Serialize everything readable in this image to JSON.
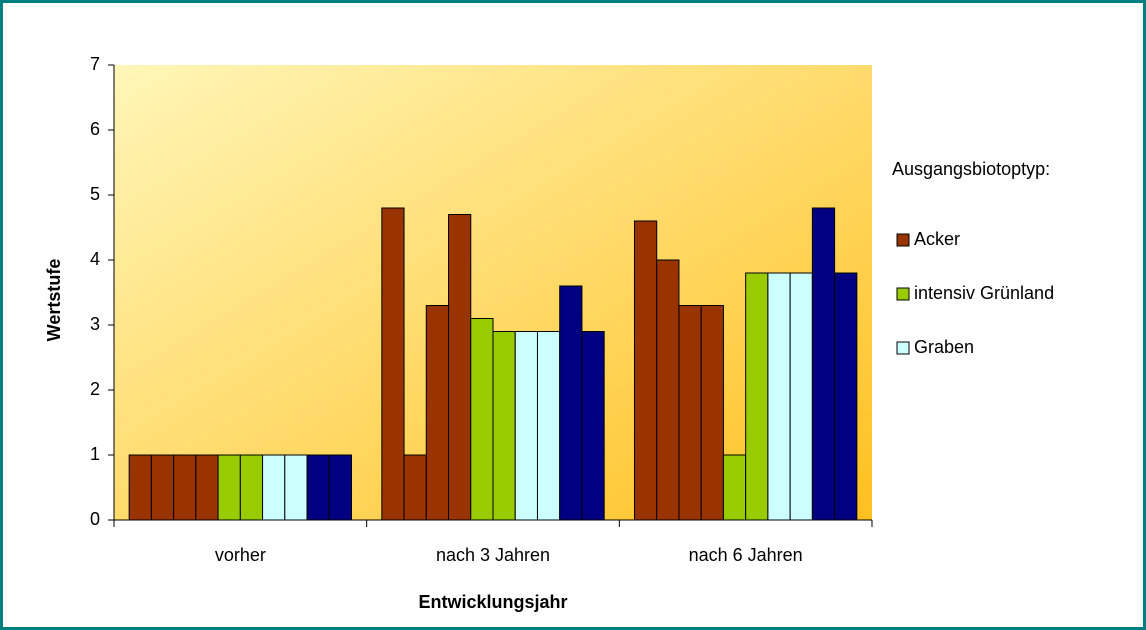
{
  "chart_data": {
    "type": "bar",
    "x_label": "Entwicklungsjahr",
    "y_label": "Wertstufe",
    "legend_title": "Ausgangsbiotoptyp:",
    "categories": [
      "vorher",
      "nach 3 Jahren",
      "nach 6 Jahren"
    ],
    "series": [
      {
        "name": "Acker",
        "color": "#993300",
        "values": [
          [
            1,
            1,
            1,
            1
          ],
          [
            4.8,
            1,
            3.3,
            4.7
          ],
          [
            4.6,
            4.0,
            3.3,
            3.3
          ]
        ]
      },
      {
        "name": "intensiv Grünland",
        "color": "#99cc00",
        "values": [
          [
            1,
            1
          ],
          [
            3.1,
            2.9
          ],
          [
            1,
            3.8
          ]
        ]
      },
      {
        "name": "Graben",
        "color": "#ccffff",
        "values": [
          [
            1,
            1
          ],
          [
            2.9,
            2.9
          ],
          [
            3.8,
            3.8
          ]
        ]
      },
      {
        "color": "#000080",
        "values": [
          [
            1,
            1
          ],
          [
            3.6,
            2.9
          ],
          [
            4.8,
            3.8
          ]
        ]
      }
    ],
    "ylim": [
      0,
      7
    ],
    "yticks": [
      0,
      1,
      2,
      3,
      4,
      5,
      6,
      7
    ],
    "grid": false,
    "legend": "right"
  }
}
